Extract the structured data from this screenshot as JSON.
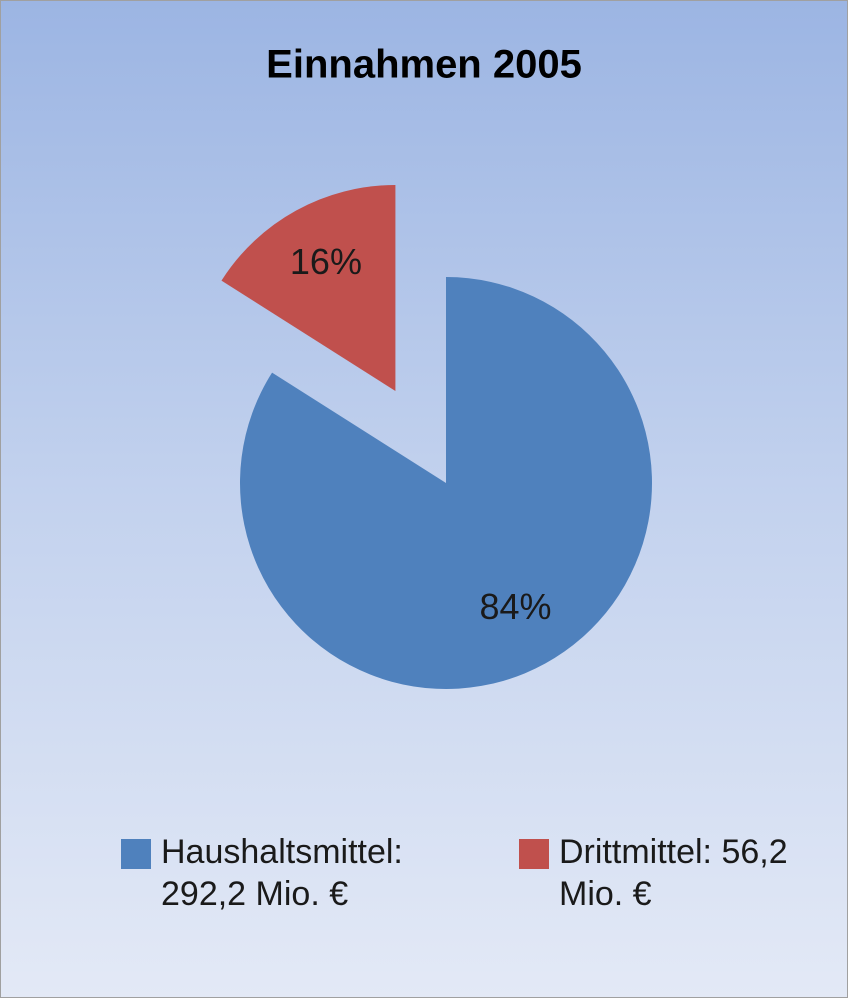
{
  "chart_data": {
    "type": "pie",
    "title": "Einnahmen 2005",
    "categories": [
      "Haushaltsmittel: 292,2 Mio. €",
      "Drittmittel: 56,2 Mio. €"
    ],
    "values": [
      84,
      16
    ],
    "value_labels": [
      "84%",
      "16%"
    ],
    "colors": [
      "#4f81bd",
      "#c0504d"
    ],
    "explode": [
      false,
      true
    ],
    "legend": "bottom"
  }
}
